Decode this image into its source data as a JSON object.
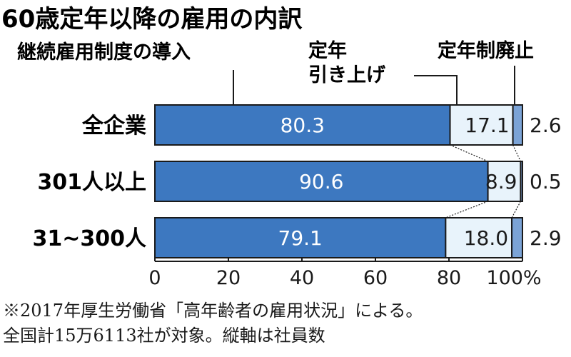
{
  "chart_data": {
    "type": "bar",
    "stacked": true,
    "orientation": "horizontal",
    "title": "60歳定年以降の雇用の内訳",
    "categories": [
      "全企業",
      "301人以上",
      "31~300人"
    ],
    "series": [
      {
        "name": "継続雇用制度の導入",
        "values": [
          80.3,
          90.6,
          79.1
        ],
        "color": "#3d78c0"
      },
      {
        "name_lines": [
          "定年",
          "引き上げ"
        ],
        "values": [
          17.1,
          8.9,
          18.0
        ],
        "color": "#e8f3fb"
      },
      {
        "name": "定年制廃止",
        "values": [
          2.6,
          0.5,
          2.9
        ],
        "color": "#7ba3d6"
      }
    ],
    "xlim": [
      0,
      100
    ],
    "x_ticks": [
      "0",
      "20",
      "40",
      "60",
      "80",
      "100%"
    ],
    "notes": [
      "※2017年厚生労働省「高年齢者の雇用状況」による。",
      "全国計15万6113社が対象。縦軸は社員数"
    ]
  }
}
